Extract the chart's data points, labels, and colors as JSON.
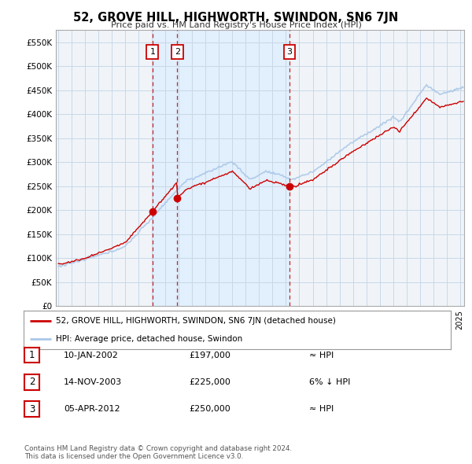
{
  "title": "52, GROVE HILL, HIGHWORTH, SWINDON, SN6 7JN",
  "subtitle": "Price paid vs. HM Land Registry's House Price Index (HPI)",
  "ylabel_ticks": [
    "£0",
    "£50K",
    "£100K",
    "£150K",
    "£200K",
    "£250K",
    "£300K",
    "£350K",
    "£400K",
    "£450K",
    "£500K",
    "£550K"
  ],
  "ytick_values": [
    0,
    50000,
    100000,
    150000,
    200000,
    250000,
    300000,
    350000,
    400000,
    450000,
    500000,
    550000
  ],
  "ylim": [
    0,
    575000
  ],
  "xlim_start": 1994.8,
  "xlim_end": 2025.3,
  "sale_dates": [
    2002.03,
    2003.88,
    2012.26
  ],
  "sale_prices": [
    197000,
    225000,
    250000
  ],
  "sale_labels": [
    "1",
    "2",
    "3"
  ],
  "hpi_color": "#aac8e8",
  "price_color": "#cc0000",
  "dashed_color": "#cc0000",
  "shade_color": "#ddeeff",
  "legend_label_price": "52, GROVE HILL, HIGHWORTH, SWINDON, SN6 7JN (detached house)",
  "legend_label_hpi": "HPI: Average price, detached house, Swindon",
  "table_rows": [
    {
      "num": "1",
      "date": "10-JAN-2002",
      "price": "£197,000",
      "vs": "≈ HPI"
    },
    {
      "num": "2",
      "date": "14-NOV-2003",
      "price": "£225,000",
      "vs": "6% ↓ HPI"
    },
    {
      "num": "3",
      "date": "05-APR-2012",
      "price": "£250,000",
      "vs": "≈ HPI"
    }
  ],
  "footer": "Contains HM Land Registry data © Crown copyright and database right 2024.\nThis data is licensed under the Open Government Licence v3.0.",
  "background_color": "#ffffff",
  "plot_bg_color": "#f0f4f8",
  "grid_color": "#c8d8e8"
}
